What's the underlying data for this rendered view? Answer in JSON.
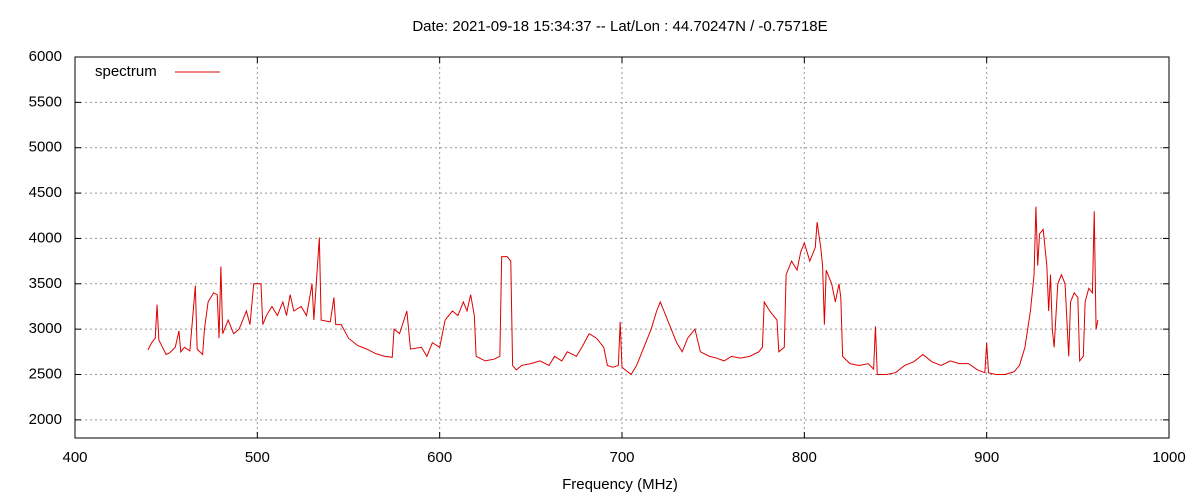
{
  "chart_data": {
    "type": "line",
    "title": "Date: 2021-09-18 15:34:37  --  Lat/Lon : 44.70247N / -0.75718E",
    "x_label": "Frequency (MHz)",
    "xlim": [
      400,
      1000
    ],
    "xticks": [
      400,
      500,
      600,
      700,
      800,
      900,
      1000
    ],
    "ylim": [
      1800,
      6000
    ],
    "yticks": [
      2000,
      2500,
      3000,
      3500,
      4000,
      4500,
      5000,
      5500,
      6000
    ],
    "grid": true,
    "legend": "top-left",
    "x": [
      440,
      442,
      444,
      445,
      446,
      448,
      450,
      452,
      455,
      457,
      458,
      460,
      463,
      466,
      467,
      470,
      471,
      473,
      476,
      478,
      479,
      480,
      481,
      484,
      487,
      490,
      494,
      496,
      498,
      502,
      503,
      505,
      508,
      511,
      514,
      516,
      518,
      520,
      524,
      527,
      530,
      531,
      534,
      535,
      540,
      542,
      543,
      546,
      550,
      555,
      560,
      565,
      570,
      574,
      575,
      578,
      582,
      584,
      590,
      593,
      596,
      600,
      603,
      607,
      610,
      613,
      615,
      617,
      619,
      620,
      625,
      630,
      633,
      634,
      637,
      639,
      640,
      642,
      645,
      650,
      655,
      660,
      663,
      667,
      670,
      675,
      678,
      682,
      686,
      690,
      692,
      695,
      698,
      699,
      700,
      705,
      708,
      712,
      716,
      719,
      721,
      723,
      727,
      730,
      733,
      736,
      740,
      743,
      748,
      752,
      756,
      760,
      765,
      770,
      775,
      777,
      778,
      781,
      785,
      786,
      789,
      790,
      793,
      796,
      798,
      800,
      803,
      806,
      807,
      809,
      810,
      811,
      812,
      815,
      817,
      819,
      820,
      821,
      825,
      830,
      835,
      838,
      839,
      840,
      845,
      850,
      855,
      860,
      865,
      870,
      875,
      880,
      885,
      890,
      895,
      899,
      900,
      901,
      905,
      910,
      915,
      918,
      921,
      924,
      926,
      927,
      928,
      929,
      931,
      933,
      934,
      935,
      936,
      937,
      939,
      941,
      943,
      945,
      946,
      948,
      950,
      951,
      953,
      954,
      956,
      958,
      959,
      960,
      961
    ],
    "series": [
      {
        "name": "spectrum",
        "color": "#dd0000",
        "values": [
          2770,
          2850,
          2900,
          3270,
          2880,
          2800,
          2720,
          2740,
          2800,
          2980,
          2750,
          2800,
          2760,
          3480,
          2780,
          2720,
          3000,
          3300,
          3400,
          3380,
          2900,
          3690,
          2950,
          3100,
          2950,
          3000,
          3200,
          3050,
          3500,
          3500,
          3050,
          3150,
          3250,
          3150,
          3300,
          3150,
          3380,
          3200,
          3250,
          3150,
          3500,
          3100,
          4010,
          3100,
          3080,
          3350,
          3050,
          3050,
          2900,
          2820,
          2780,
          2730,
          2700,
          2690,
          3000,
          2950,
          3200,
          2780,
          2800,
          2700,
          2850,
          2800,
          3100,
          3200,
          3150,
          3300,
          3200,
          3380,
          3150,
          2700,
          2650,
          2670,
          2700,
          3800,
          3800,
          3750,
          2600,
          2550,
          2600,
          2620,
          2650,
          2600,
          2700,
          2650,
          2750,
          2700,
          2800,
          2950,
          2900,
          2800,
          2600,
          2580,
          2600,
          3080,
          2580,
          2500,
          2600,
          2800,
          3000,
          3200,
          3300,
          3200,
          3000,
          2850,
          2750,
          2900,
          3000,
          2750,
          2700,
          2680,
          2650,
          2700,
          2680,
          2700,
          2750,
          2800,
          3300,
          3200,
          3100,
          2750,
          2800,
          3600,
          3750,
          3650,
          3850,
          3950,
          3750,
          3900,
          4180,
          3900,
          3700,
          3050,
          3650,
          3500,
          3300,
          3500,
          3350,
          2700,
          2620,
          2600,
          2620,
          2560,
          3030,
          2500,
          2500,
          2520,
          2600,
          2640,
          2720,
          2640,
          2600,
          2650,
          2620,
          2620,
          2550,
          2520,
          2850,
          2520,
          2500,
          2500,
          2530,
          2600,
          2800,
          3200,
          3600,
          4350,
          3700,
          4050,
          4100,
          3700,
          3200,
          3600,
          3000,
          2800,
          3500,
          3600,
          3500,
          2700,
          3300,
          3400,
          3350,
          2650,
          2700,
          3300,
          3450,
          3400,
          4300,
          3000,
          3100
        ]
      }
    ]
  }
}
